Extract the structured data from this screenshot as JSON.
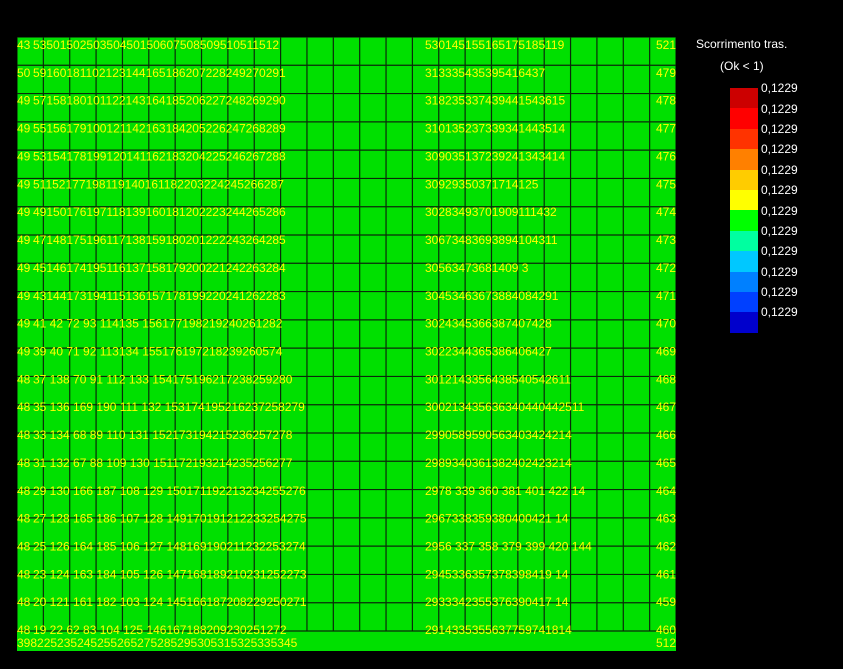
{
  "colors": {
    "background": "#000000",
    "mesh_fill": "#00e000",
    "mesh_line": "#0a2a0a",
    "node_label": "#ffff00"
  },
  "mesh": {
    "columns": 25,
    "rows": 21,
    "left_cols": 16,
    "right_cols": 9
  },
  "node_rows": [
    {
      "left": "43",
      "labels": "5350150250350450150607508509510511512",
      "mid": "530145155165175185119",
      "right": "521"
    },
    {
      "left": "50",
      "labels": "59160181102123144165186207228249270291",
      "mid": "313335435395416437",
      "right": "479"
    },
    {
      "left": "49",
      "labels": "57158180101122143164185206227248269290",
      "mid": "318235337439441543615",
      "right": "478"
    },
    {
      "left": "49",
      "labels": "55156179100121142163184205226247268289",
      "mid": "310135237339341443514",
      "right": "477"
    },
    {
      "left": "49",
      "labels": "53154178199120141162183204225246267288",
      "mid": "309035137239241343414",
      "right": "476"
    },
    {
      "left": "49",
      "labels": "51152177198119140161182203224245266287",
      "mid": "30929350371714125",
      "right": "475"
    },
    {
      "left": "49",
      "labels": "49150176197118139160181202223244265286",
      "mid": "30283493701909111432",
      "right": "474"
    },
    {
      "left": "49",
      "labels": "47148175196117138159180201222243264285",
      "mid": "30673483693894104311",
      "right": "473"
    },
    {
      "left": "49",
      "labels": "45146174195116137158179200221242263284",
      "mid": "30563473681409 3",
      "right": "472"
    },
    {
      "left": "49",
      "labels": "43144173194115136157178199220241262283",
      "mid": "30453463673884084291",
      "right": "471"
    },
    {
      "left": "49",
      "labels": "41 42 72 93 114135 156177198219240261282",
      "mid": "3024345366387407428",
      "right": "470"
    },
    {
      "left": "49",
      "labels": "39 40 71 92 113134 155176197218239260574",
      "mid": "3022344365386406427",
      "right": "469"
    },
    {
      "left": "48",
      "labels": "37 138 70 91 112 133 154175196217238259280",
      "mid": "3012143356438540542611",
      "right": "468"
    },
    {
      "left": "48",
      "labels": "35 136 169 190 111 132 153174195216237258279",
      "mid": "300213435636340440442511",
      "right": "467"
    },
    {
      "left": "48",
      "labels": "33 134 68 89 110 131 152173194215236257278",
      "mid": "2990589590563403424214",
      "right": "466"
    },
    {
      "left": "48",
      "labels": "31 132 67 88 109 130 151172193214235256277",
      "mid": "2989340361382402423214",
      "right": "465"
    },
    {
      "left": "48",
      "labels": "29 130 166 187 108 129 150171192213234255276",
      "mid": "2978 339 360 381 401 422 14",
      "right": "464"
    },
    {
      "left": "48",
      "labels": "27 128 165 186 107 128 149170191212233254275",
      "mid": "2967338359380400421 14",
      "right": "463"
    },
    {
      "left": "48",
      "labels": "25 126 164 185 106 127 148169190211232253274",
      "mid": "2956 337 358 379 399 420 144",
      "right": "462"
    },
    {
      "left": "48",
      "labels": "23 124 163 184 105 126 147168189210231252273",
      "mid": "2945336357378398419 14",
      "right": "461"
    },
    {
      "left": "48",
      "labels": "20 121 161 182 103 124 145166187208229250271",
      "mid": "2933342355376390417 14",
      "right": "459"
    },
    {
      "left": "48",
      "labels": "19 22 62 83 104 125 146167188209230251272",
      "mid": "2914335355637759741814",
      "right": "460"
    }
  ],
  "bottom_labels": {
    "left": "398225235245255265275285295305315325335345",
    "right": "512"
  },
  "legend": {
    "title": "Scorrimento tras.",
    "subtitle": "(Ok < 1)",
    "entries": [
      {
        "color": "#cc0000",
        "label": "0,1229"
      },
      {
        "color": "#ff0000",
        "label": "0,1229"
      },
      {
        "color": "#ff3300",
        "label": "0,1229"
      },
      {
        "color": "#ff8000",
        "label": "0,1229"
      },
      {
        "color": "#ffcc00",
        "label": "0,1229"
      },
      {
        "color": "#ffff00",
        "label": "0,1229"
      },
      {
        "color": "#00ff00",
        "label": "0,1229"
      },
      {
        "color": "#00ffa0",
        "label": "0,1229"
      },
      {
        "color": "#00c8ff",
        "label": "0,1229"
      },
      {
        "color": "#0080ff",
        "label": "0,1229"
      },
      {
        "color": "#0040ff",
        "label": "0,1229"
      },
      {
        "color": "#0000cc",
        "label": "0,1229"
      }
    ]
  }
}
